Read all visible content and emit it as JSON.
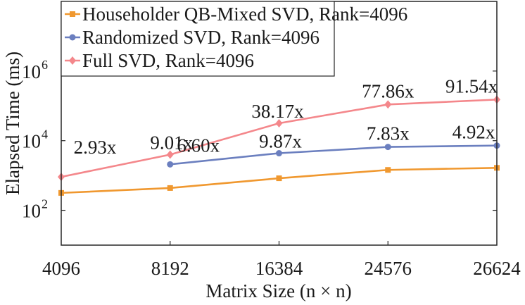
{
  "chart_data": {
    "type": "line",
    "title": "",
    "xlabel": "Matrix Size (n × n)",
    "ylabel": "Elapsed Time (ms)",
    "yscale": "log",
    "ylim": [
      10,
      100000000
    ],
    "grid": false,
    "legend_position": "top-left",
    "categories": [
      "4096",
      "8192",
      "16384",
      "24576",
      "26624"
    ],
    "yticks": [
      {
        "value": 100,
        "base": "10",
        "exp": "2"
      },
      {
        "value": 10000,
        "base": "10",
        "exp": "4"
      },
      {
        "value": 1000000,
        "base": "10",
        "exp": "6"
      }
    ],
    "series": [
      {
        "name": "Householder QB-Mixed SVD, Rank=4096",
        "color": "#f0982f",
        "marker": "square",
        "values": [
          316,
          437,
          832,
          1445,
          1660
        ]
      },
      {
        "name": "Randomized SVD, Rank=4096",
        "color": "#6b7fbf",
        "marker": "circle",
        "values": [
          null,
          2089,
          4365,
          6607,
          7244
        ]
      },
      {
        "name": "Full SVD, Rank=4096",
        "color": "#f4878b",
        "marker": "diamond",
        "values": [
          912,
          3981,
          31623,
          109648,
          151356
        ]
      }
    ],
    "annotations": [
      {
        "text": "2.93x",
        "category": "4096",
        "series": "Full SVD, Rank=4096"
      },
      {
        "text": "9.01x",
        "category": "8192",
        "series": "Full SVD, Rank=4096"
      },
      {
        "text": "38.17x",
        "category": "16384",
        "series": "Full SVD, Rank=4096"
      },
      {
        "text": "77.86x",
        "category": "24576",
        "series": "Full SVD, Rank=4096"
      },
      {
        "text": "91.54x",
        "category": "26624",
        "series": "Full SVD, Rank=4096"
      },
      {
        "text": "6.60x",
        "category": "8192",
        "series": "Randomized SVD, Rank=4096"
      },
      {
        "text": "9.87x",
        "category": "16384",
        "series": "Randomized SVD, Rank=4096"
      },
      {
        "text": "7.83x",
        "category": "24576",
        "series": "Randomized SVD, Rank=4096"
      },
      {
        "text": "4.92x",
        "category": "26624",
        "series": "Randomized SVD, Rank=4096"
      }
    ]
  }
}
